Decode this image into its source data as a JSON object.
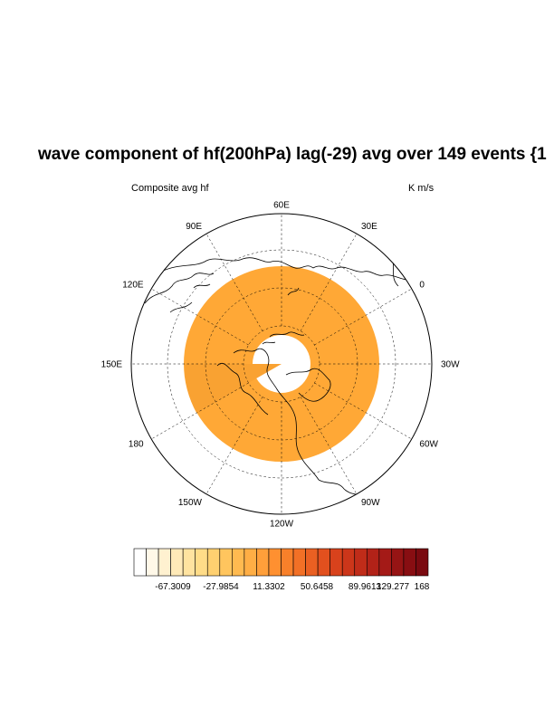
{
  "title": "wave component of hf(200hPa) lag(-29) avg over 149 events {1",
  "left_label": "Composite avg hf",
  "right_label": "K m/s",
  "longitude_labels": [
    "60E",
    "30E",
    "0",
    "30W",
    "60W",
    "90W",
    "120W",
    "150W",
    "180",
    "150E",
    "120E",
    "90E"
  ],
  "colorbar": {
    "tick_labels": [
      "-67.3009",
      "-27.9854",
      "11.3302",
      "50.6458",
      "89.9613",
      "129.277",
      "168"
    ],
    "colors": [
      "#ffffff",
      "#fff8e8",
      "#fff1d0",
      "#ffeab8",
      "#ffe3a0",
      "#ffdc88",
      "#ffd070",
      "#ffc55e",
      "#ffba50",
      "#ffae45",
      "#ff9f3a",
      "#ff9030",
      "#f8802a",
      "#f27026",
      "#ea6022",
      "#e2501e",
      "#d8421c",
      "#cc361a",
      "#c02c19",
      "#b22218",
      "#a41a17",
      "#961414",
      "#880e12",
      "#7a0a10"
    ]
  },
  "field": {
    "ring_color": "#ffa836",
    "ring_color_inner": "#ffae3c",
    "west_color": "#f9a232"
  }
}
